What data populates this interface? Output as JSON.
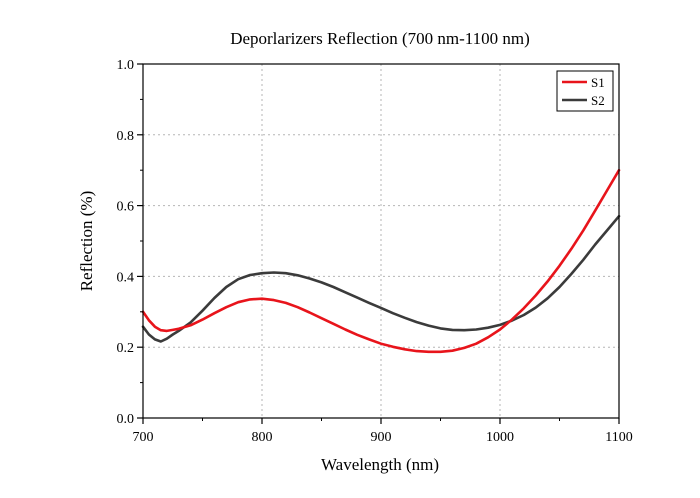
{
  "chart_data": {
    "type": "line",
    "title": "Deporlarizers Reflection (700 nm-1100 nm)",
    "xlabel": "Wavelength (nm)",
    "ylabel": "Reflection (%)",
    "xlim": [
      700,
      1100
    ],
    "ylim": [
      0.0,
      1.0
    ],
    "xticks": [
      700,
      800,
      900,
      1000,
      1100
    ],
    "xtick_labels": [
      "700",
      "800",
      "900",
      "1000",
      "1100"
    ],
    "yticks": [
      0.0,
      0.2,
      0.4,
      0.6,
      0.8,
      1.0
    ],
    "ytick_labels": [
      "0.0",
      "0.2",
      "0.4",
      "0.6",
      "0.8",
      "1.0"
    ],
    "grid": true,
    "legend_position": "top-right",
    "series": [
      {
        "name": "S1",
        "color": "#e8141b",
        "x": [
          700,
          705,
          710,
          715,
          720,
          725,
          730,
          740,
          750,
          760,
          770,
          780,
          790,
          800,
          810,
          820,
          830,
          840,
          850,
          860,
          870,
          880,
          890,
          900,
          910,
          920,
          930,
          940,
          950,
          960,
          970,
          980,
          990,
          1000,
          1010,
          1020,
          1030,
          1040,
          1050,
          1060,
          1070,
          1080,
          1090,
          1100
        ],
        "y": [
          0.3,
          0.276,
          0.258,
          0.248,
          0.246,
          0.249,
          0.252,
          0.262,
          0.278,
          0.296,
          0.313,
          0.327,
          0.335,
          0.337,
          0.333,
          0.325,
          0.313,
          0.298,
          0.282,
          0.266,
          0.25,
          0.235,
          0.222,
          0.21,
          0.201,
          0.194,
          0.189,
          0.187,
          0.187,
          0.19,
          0.198,
          0.21,
          0.228,
          0.25,
          0.278,
          0.31,
          0.346,
          0.386,
          0.43,
          0.478,
          0.53,
          0.586,
          0.643,
          0.7
        ]
      },
      {
        "name": "S2",
        "color": "#3b3b3b",
        "x": [
          700,
          705,
          710,
          715,
          720,
          725,
          730,
          740,
          750,
          760,
          770,
          780,
          790,
          800,
          810,
          820,
          830,
          840,
          850,
          860,
          870,
          880,
          890,
          900,
          910,
          920,
          930,
          940,
          950,
          960,
          970,
          980,
          990,
          1000,
          1010,
          1020,
          1030,
          1040,
          1050,
          1060,
          1070,
          1080,
          1090,
          1100
        ],
        "y": [
          0.258,
          0.236,
          0.222,
          0.216,
          0.224,
          0.236,
          0.246,
          0.27,
          0.303,
          0.339,
          0.37,
          0.392,
          0.404,
          0.409,
          0.411,
          0.409,
          0.403,
          0.394,
          0.383,
          0.37,
          0.355,
          0.34,
          0.325,
          0.311,
          0.296,
          0.283,
          0.271,
          0.261,
          0.253,
          0.249,
          0.248,
          0.25,
          0.255,
          0.263,
          0.275,
          0.291,
          0.312,
          0.338,
          0.37,
          0.407,
          0.447,
          0.49,
          0.53,
          0.57
        ]
      }
    ]
  }
}
